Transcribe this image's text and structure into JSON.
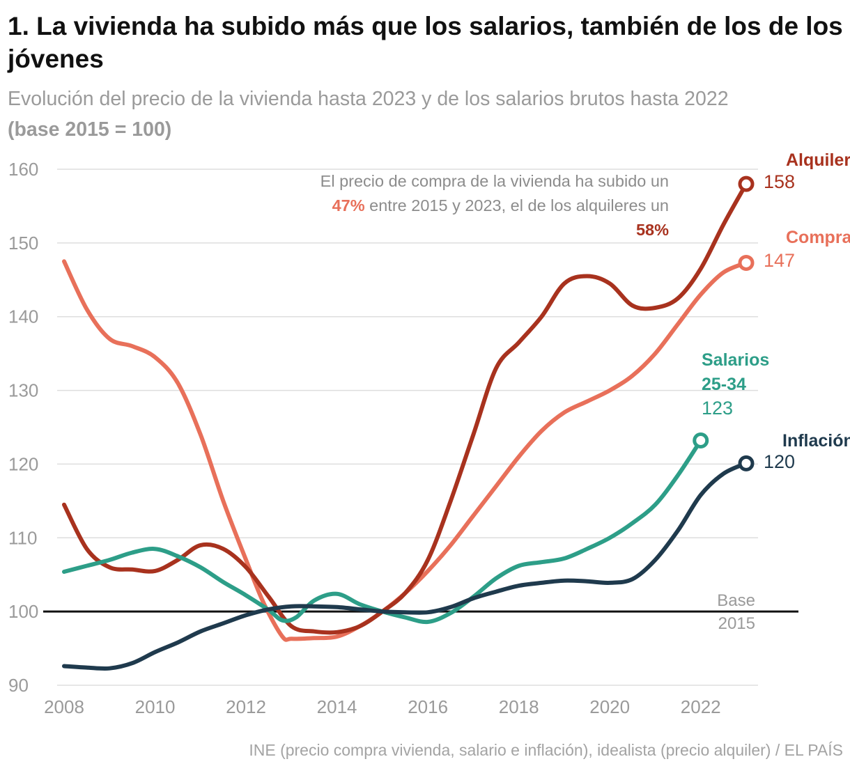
{
  "header": {
    "title": "1. La vivienda ha subido más que los salarios, también de los de los jóvenes",
    "subtitle": "Evolución del precio de la vivienda hasta 2023 y de los salarios brutos hasta 2022",
    "subtitle_base": "(base 2015 = 100)"
  },
  "chart_data": {
    "type": "line",
    "xlim": [
      2008,
      2023
    ],
    "ylim": [
      90,
      160
    ],
    "x_ticks": [
      "2008",
      "2010",
      "2012",
      "2014",
      "2016",
      "2018",
      "2020",
      "2022"
    ],
    "y_ticks": [
      "160",
      "150",
      "140",
      "130",
      "120",
      "110",
      "100",
      "90"
    ],
    "grid": true,
    "baseline": {
      "value": 100,
      "label_line1": "Base",
      "label_line2": "2015"
    },
    "series": [
      {
        "name": "Compra",
        "color": "#e8705a",
        "end_label": "147",
        "points": [
          [
            2008,
            147.5
          ],
          [
            2008.5,
            141
          ],
          [
            2009,
            137
          ],
          [
            2009.5,
            136
          ],
          [
            2010,
            134.5
          ],
          [
            2010.5,
            131
          ],
          [
            2011,
            124
          ],
          [
            2011.5,
            115
          ],
          [
            2012,
            107
          ],
          [
            2012.4,
            101
          ],
          [
            2012.8,
            96.6
          ],
          [
            2013,
            96.3
          ],
          [
            2013.5,
            96.4
          ],
          [
            2014,
            96.6
          ],
          [
            2014.5,
            98
          ],
          [
            2015,
            100
          ],
          [
            2015.5,
            102.5
          ],
          [
            2016,
            105.5
          ],
          [
            2016.5,
            109
          ],
          [
            2017,
            113
          ],
          [
            2017.5,
            117
          ],
          [
            2018,
            121
          ],
          [
            2018.5,
            124.5
          ],
          [
            2019,
            127
          ],
          [
            2019.5,
            128.5
          ],
          [
            2020,
            130
          ],
          [
            2020.5,
            132
          ],
          [
            2021,
            135
          ],
          [
            2021.5,
            139
          ],
          [
            2022,
            143
          ],
          [
            2022.5,
            146
          ],
          [
            2023,
            147.3
          ]
        ]
      },
      {
        "name": "Alquiler",
        "color": "#a8321e",
        "end_label": "158",
        "points": [
          [
            2008,
            114.5
          ],
          [
            2008.5,
            108.5
          ],
          [
            2009,
            106
          ],
          [
            2009.5,
            105.7
          ],
          [
            2010,
            105.5
          ],
          [
            2010.5,
            107
          ],
          [
            2011,
            109
          ],
          [
            2011.5,
            108.5
          ],
          [
            2012,
            106
          ],
          [
            2012.5,
            102
          ],
          [
            2013,
            98
          ],
          [
            2013.5,
            97.3
          ],
          [
            2014,
            97.2
          ],
          [
            2014.5,
            98
          ],
          [
            2015,
            100
          ],
          [
            2015.5,
            102.5
          ],
          [
            2016,
            107
          ],
          [
            2016.5,
            115
          ],
          [
            2017,
            124
          ],
          [
            2017.5,
            133
          ],
          [
            2018,
            136.5
          ],
          [
            2018.5,
            140
          ],
          [
            2019,
            144.5
          ],
          [
            2019.5,
            145.5
          ],
          [
            2020,
            144.5
          ],
          [
            2020.5,
            141.5
          ],
          [
            2021,
            141.2
          ],
          [
            2021.5,
            142.5
          ],
          [
            2022,
            146.5
          ],
          [
            2022.5,
            152.5
          ],
          [
            2023,
            158
          ]
        ]
      },
      {
        "name": "Salarios 25-34",
        "name_line1": "Salarios",
        "name_line2": "25-34",
        "color": "#2d9e88",
        "end_label": "123",
        "points": [
          [
            2008,
            105.4
          ],
          [
            2008.5,
            106.2
          ],
          [
            2009,
            107
          ],
          [
            2009.5,
            108
          ],
          [
            2010,
            108.5
          ],
          [
            2010.5,
            107.5
          ],
          [
            2011,
            106
          ],
          [
            2011.5,
            104
          ],
          [
            2012,
            102.2
          ],
          [
            2012.5,
            100.2
          ],
          [
            2012.8,
            98.8
          ],
          [
            2013.1,
            99.2
          ],
          [
            2013.5,
            101.5
          ],
          [
            2014,
            102.4
          ],
          [
            2014.5,
            101
          ],
          [
            2015,
            100
          ],
          [
            2015.5,
            99.2
          ],
          [
            2016,
            98.6
          ],
          [
            2016.5,
            99.8
          ],
          [
            2017,
            102
          ],
          [
            2017.5,
            104.5
          ],
          [
            2018,
            106.2
          ],
          [
            2018.5,
            106.7
          ],
          [
            2019,
            107.2
          ],
          [
            2019.5,
            108.5
          ],
          [
            2020,
            110
          ],
          [
            2020.5,
            112
          ],
          [
            2021,
            114.5
          ],
          [
            2021.5,
            118.5
          ],
          [
            2022,
            123.2
          ]
        ]
      },
      {
        "name": "Inflación",
        "color": "#1f3a4d",
        "end_label": "120",
        "points": [
          [
            2008,
            92.6
          ],
          [
            2008.5,
            92.4
          ],
          [
            2009,
            92.3
          ],
          [
            2009.5,
            93
          ],
          [
            2010,
            94.5
          ],
          [
            2010.5,
            95.8
          ],
          [
            2011,
            97.3
          ],
          [
            2011.5,
            98.4
          ],
          [
            2012,
            99.5
          ],
          [
            2012.5,
            100.3
          ],
          [
            2013,
            100.7
          ],
          [
            2013.5,
            100.7
          ],
          [
            2014,
            100.6
          ],
          [
            2014.5,
            100.3
          ],
          [
            2015,
            100
          ],
          [
            2015.5,
            99.9
          ],
          [
            2016,
            99.9
          ],
          [
            2016.5,
            100.6
          ],
          [
            2017,
            101.8
          ],
          [
            2017.5,
            102.7
          ],
          [
            2018,
            103.5
          ],
          [
            2018.5,
            103.9
          ],
          [
            2019,
            104.2
          ],
          [
            2019.5,
            104.1
          ],
          [
            2020,
            103.9
          ],
          [
            2020.5,
            104.4
          ],
          [
            2021,
            107
          ],
          [
            2021.5,
            111
          ],
          [
            2022,
            115.8
          ],
          [
            2022.5,
            118.7
          ],
          [
            2023,
            120.1
          ]
        ]
      }
    ],
    "annotation": {
      "line1": "El precio de compra de la vivienda ha subido un",
      "pct_compra": "47%",
      "line2": " entre 2015 y 2023, el de los alquileres un",
      "pct_alquiler": "58%"
    }
  },
  "source": "INE (precio compra vivienda, salario e inflación), idealista (precio alquiler) / EL PAÍS"
}
